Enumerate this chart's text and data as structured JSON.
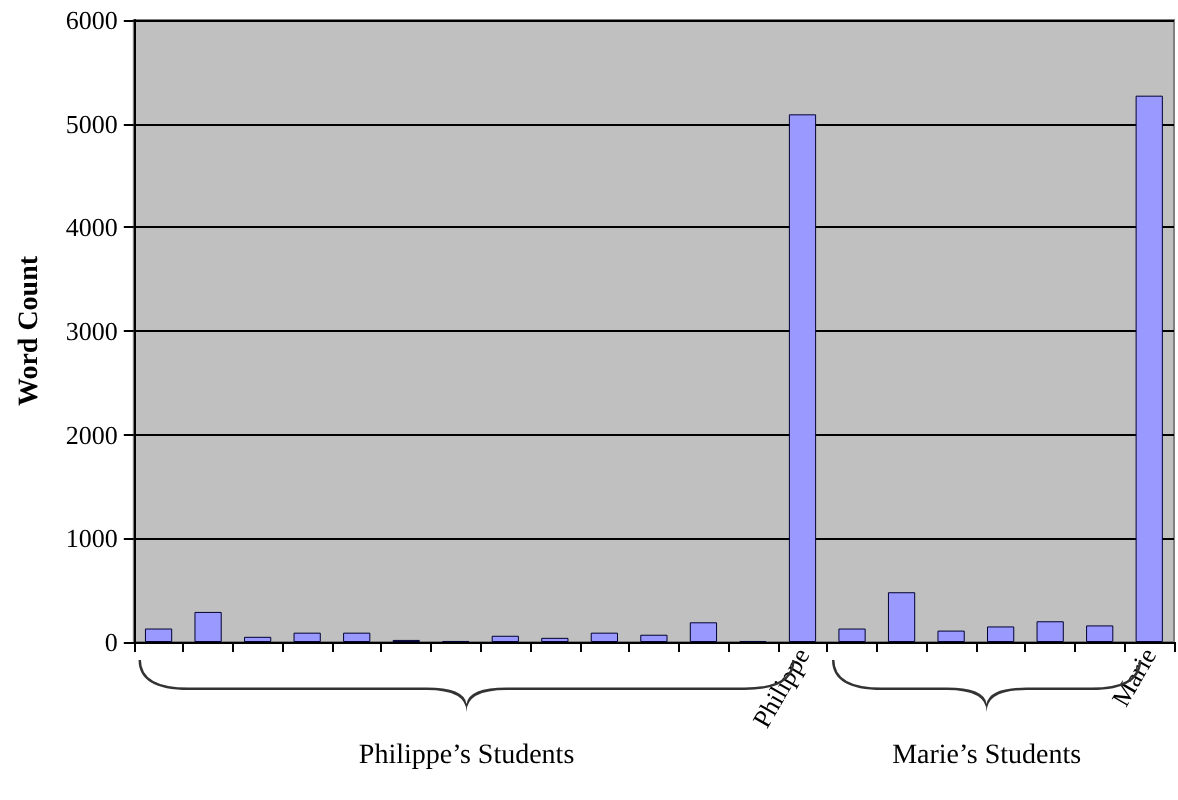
{
  "chart_data": {
    "type": "bar",
    "ylabel": "Word Count",
    "categories": [
      null,
      null,
      null,
      null,
      null,
      null,
      null,
      null,
      null,
      null,
      null,
      null,
      null,
      "Philippe",
      null,
      null,
      null,
      null,
      null,
      null,
      "Marie"
    ],
    "values": [
      130,
      290,
      50,
      90,
      90,
      20,
      10,
      60,
      40,
      90,
      70,
      190,
      10,
      5090,
      130,
      480,
      110,
      150,
      200,
      160,
      5270
    ],
    "color": "#9999ff",
    "ylim": [
      0,
      6000
    ],
    "yticks": [
      0,
      1000,
      2000,
      3000,
      4000,
      5000,
      6000
    ],
    "grid": "y",
    "annotations": [
      "Philippe’s Students",
      "Marie’s Students"
    ]
  }
}
